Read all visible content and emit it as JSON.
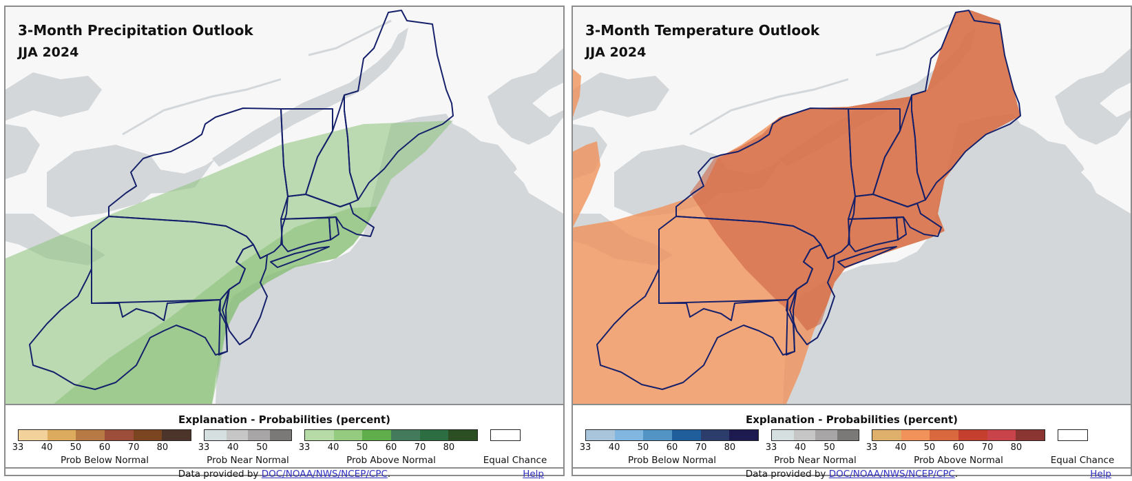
{
  "panels": [
    {
      "title": "3-Month Precipitation Outlook",
      "period": "JJA 2024",
      "overlay_color": "#8cc27a",
      "legend": {
        "heading": "Explanation - Probabilities (percent)",
        "groups": [
          {
            "label": "Prob Below Normal",
            "colors": [
              "#f2d29a",
              "#dcab5e",
              "#b87a45",
              "#9c4e3a",
              "#7a4520",
              "#4c342b"
            ],
            "ticks": [
              "33",
              "40",
              "50",
              "60",
              "70",
              "80"
            ]
          },
          {
            "label": "Prob Near Normal",
            "colors": [
              "#d5dfdf",
              "#c6c6c6",
              "#a7a5a5",
              "#7b7878"
            ],
            "ticks": [
              "33",
              "40",
              "50"
            ]
          },
          {
            "label": "Prob Above Normal",
            "colors": [
              "#b7dba6",
              "#95cb7f",
              "#5fae4b",
              "#427a5b",
              "#2c6e42",
              "#2b4f22"
            ],
            "ticks": [
              "33",
              "40",
              "50",
              "60",
              "70",
              "80"
            ]
          }
        ],
        "equal_chance": "Equal Chance"
      },
      "credit_prefix": "Data provided by ",
      "credit_link": "DOC/NOAA/NWS/NCEP/CPC",
      "credit_suffix": ".",
      "help": "Help"
    },
    {
      "title": "3-Month Temperature Outlook",
      "period": "JJA 2024",
      "overlay_color": "#f0925a",
      "legend": {
        "heading": "Explanation - Probabilities (percent)",
        "groups": [
          {
            "label": "Prob Below Normal",
            "colors": [
              "#a9c5dc",
              "#80b6e0",
              "#5295c4",
              "#1f5e9a",
              "#2c3d6b",
              "#1c1a4e"
            ],
            "ticks": [
              "33",
              "40",
              "50",
              "60",
              "70",
              "80"
            ]
          },
          {
            "label": "Prob Near Normal",
            "colors": [
              "#d5dfdf",
              "#c6c6c6",
              "#a7a5a5",
              "#7b7878"
            ],
            "ticks": [
              "33",
              "40",
              "50"
            ]
          },
          {
            "label": "Prob Above Normal",
            "colors": [
              "#deb06c",
              "#f0925a",
              "#d9683e",
              "#c53f2f",
              "#c9434a",
              "#8a3532"
            ],
            "ticks": [
              "33",
              "40",
              "50",
              "60",
              "70",
              "80"
            ]
          }
        ],
        "equal_chance": "Equal Chance"
      },
      "credit_prefix": "Data provided by ",
      "credit_link": "DOC/NOAA/NWS/NCEP/CPC",
      "credit_suffix": ".",
      "help": "Help"
    }
  ]
}
